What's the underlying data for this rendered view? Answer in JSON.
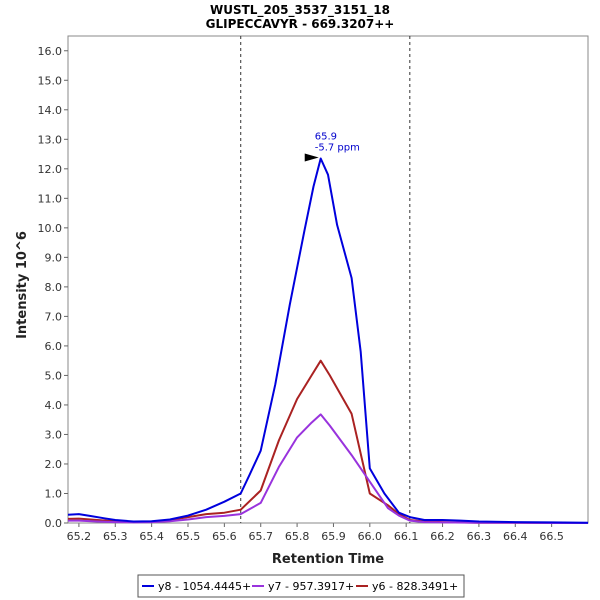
{
  "title_line1": "WUSTL_205_3537_3151_18",
  "title_line2": "GLIPECCAVYR - 669.3207++",
  "chart_data": {
    "type": "line",
    "xlabel": "Retention Time",
    "ylabel": "Intensity 10^6",
    "xlim": [
      65.17,
      66.6
    ],
    "ylim": [
      0,
      16.5
    ],
    "x_ticks": [
      "65.2",
      "65.3",
      "65.4",
      "65.5",
      "65.6",
      "65.7",
      "65.8",
      "65.9",
      "66.0",
      "66.1",
      "66.2",
      "66.3",
      "66.4",
      "66.5"
    ],
    "y_ticks": [
      "0.0",
      "1.0",
      "2.0",
      "3.0",
      "4.0",
      "5.0",
      "6.0",
      "7.0",
      "8.0",
      "9.0",
      "10.0",
      "11.0",
      "12.0",
      "13.0",
      "14.0",
      "15.0",
      "16.0"
    ],
    "boundaries": [
      65.645,
      66.11
    ],
    "peak_annotation": {
      "x": 65.865,
      "y": 12.35,
      "rt_label": "65.9",
      "ppm_label": "-5.7 ppm"
    },
    "legend_position": "bottom-center",
    "series": [
      {
        "name": "y8 - 1054.4445+",
        "color": "#0000dd",
        "x": [
          65.17,
          65.2,
          65.23,
          65.27,
          65.3,
          65.35,
          65.4,
          65.45,
          65.5,
          65.55,
          65.6,
          65.645,
          65.67,
          65.7,
          65.74,
          65.78,
          65.82,
          65.845,
          65.865,
          65.885,
          65.91,
          65.95,
          65.975,
          66.0,
          66.04,
          66.08,
          66.11,
          66.15,
          66.2,
          66.25,
          66.3,
          66.4,
          66.5,
          66.6
        ],
        "y": [
          0.28,
          0.3,
          0.24,
          0.16,
          0.1,
          0.05,
          0.06,
          0.12,
          0.25,
          0.45,
          0.72,
          1.0,
          1.65,
          2.45,
          4.7,
          7.4,
          9.9,
          11.4,
          12.35,
          11.8,
          10.1,
          8.3,
          5.8,
          1.85,
          1.0,
          0.35,
          0.2,
          0.1,
          0.1,
          0.08,
          0.05,
          0.03,
          0.02,
          0.01
        ]
      },
      {
        "name": "y7 - 957.3917+",
        "color": "#9933dd",
        "x": [
          65.17,
          65.2,
          65.25,
          65.3,
          65.35,
          65.4,
          65.45,
          65.5,
          65.55,
          65.6,
          65.645,
          65.7,
          65.75,
          65.8,
          65.84,
          65.865,
          65.89,
          65.95,
          66.0,
          66.05,
          66.08,
          66.11,
          66.15,
          66.2,
          66.3,
          66.4,
          66.5,
          66.6
        ],
        "y": [
          0.08,
          0.08,
          0.05,
          0.03,
          0.02,
          0.03,
          0.06,
          0.12,
          0.2,
          0.24,
          0.3,
          0.68,
          1.9,
          2.9,
          3.4,
          3.68,
          3.3,
          2.3,
          1.4,
          0.5,
          0.25,
          0.08,
          0.03,
          0.02,
          0.01,
          0.01,
          0.0,
          0.0
        ]
      },
      {
        "name": "y6 - 828.3491+",
        "color": "#aa2222",
        "x": [
          65.17,
          65.2,
          65.25,
          65.3,
          65.35,
          65.4,
          65.45,
          65.5,
          65.55,
          65.6,
          65.645,
          65.7,
          65.75,
          65.8,
          65.84,
          65.865,
          65.89,
          65.95,
          66.0,
          66.05,
          66.08,
          66.11,
          66.15,
          66.2,
          66.3,
          66.4,
          66.5,
          66.6
        ],
        "y": [
          0.14,
          0.15,
          0.1,
          0.06,
          0.03,
          0.04,
          0.1,
          0.2,
          0.3,
          0.35,
          0.45,
          1.1,
          2.8,
          4.2,
          5.0,
          5.5,
          5.0,
          3.7,
          1.0,
          0.6,
          0.3,
          0.1,
          0.05,
          0.03,
          0.01,
          0.01,
          0.0,
          0.0
        ]
      }
    ]
  }
}
